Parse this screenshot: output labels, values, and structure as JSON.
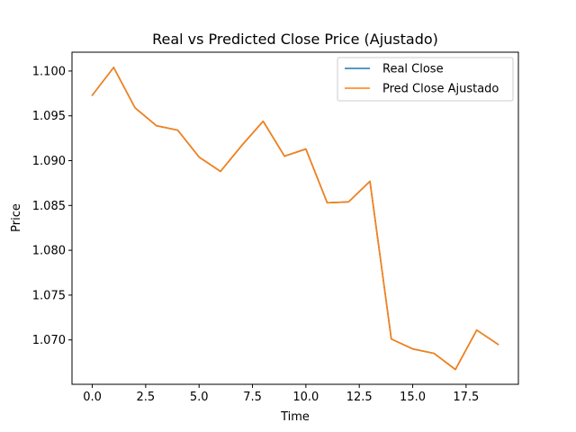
{
  "chart_data": {
    "type": "line",
    "title": "Real vs Predicted Close Price (Ajustado)",
    "xlabel": "Time",
    "ylabel": "Price",
    "xlim": [
      -0.95,
      19.95
    ],
    "ylim": [
      1.06505,
      1.1021
    ],
    "x_ticks": [
      0.0,
      2.5,
      5.0,
      7.5,
      10.0,
      12.5,
      15.0,
      17.5
    ],
    "x_tick_labels": [
      "0.0",
      "2.5",
      "5.0",
      "7.5",
      "10.0",
      "12.5",
      "15.0",
      "17.5"
    ],
    "y_ticks": [
      1.07,
      1.075,
      1.08,
      1.085,
      1.09,
      1.095,
      1.1
    ],
    "y_tick_labels": [
      "1.070",
      "1.075",
      "1.080",
      "1.085",
      "1.090",
      "1.095",
      "1.100"
    ],
    "grid": false,
    "legend_position": "top-right",
    "x": [
      0,
      1,
      2,
      3,
      4,
      5,
      6,
      7,
      8,
      9,
      10,
      11,
      12,
      13,
      14,
      15,
      16,
      17,
      18,
      19
    ],
    "series": [
      {
        "name": "Real Close",
        "color": "#1f77b4",
        "values": [
          1.0973,
          1.1004,
          1.0959,
          1.0939,
          1.0934,
          1.0904,
          1.0888,
          1.0917,
          1.0944,
          1.0905,
          1.0913,
          1.0853,
          1.0854,
          1.0877,
          1.0701,
          1.069,
          1.0685,
          1.0667,
          1.0711,
          1.0695
        ]
      },
      {
        "name": "Pred Close Ajustado",
        "color": "#ff7f0e",
        "values": [
          1.0973,
          1.1004,
          1.0959,
          1.0939,
          1.0934,
          1.0904,
          1.0888,
          1.0917,
          1.0944,
          1.0905,
          1.0913,
          1.0853,
          1.0854,
          1.0877,
          1.0701,
          1.069,
          1.0685,
          1.0667,
          1.0711,
          1.0695
        ]
      }
    ]
  }
}
